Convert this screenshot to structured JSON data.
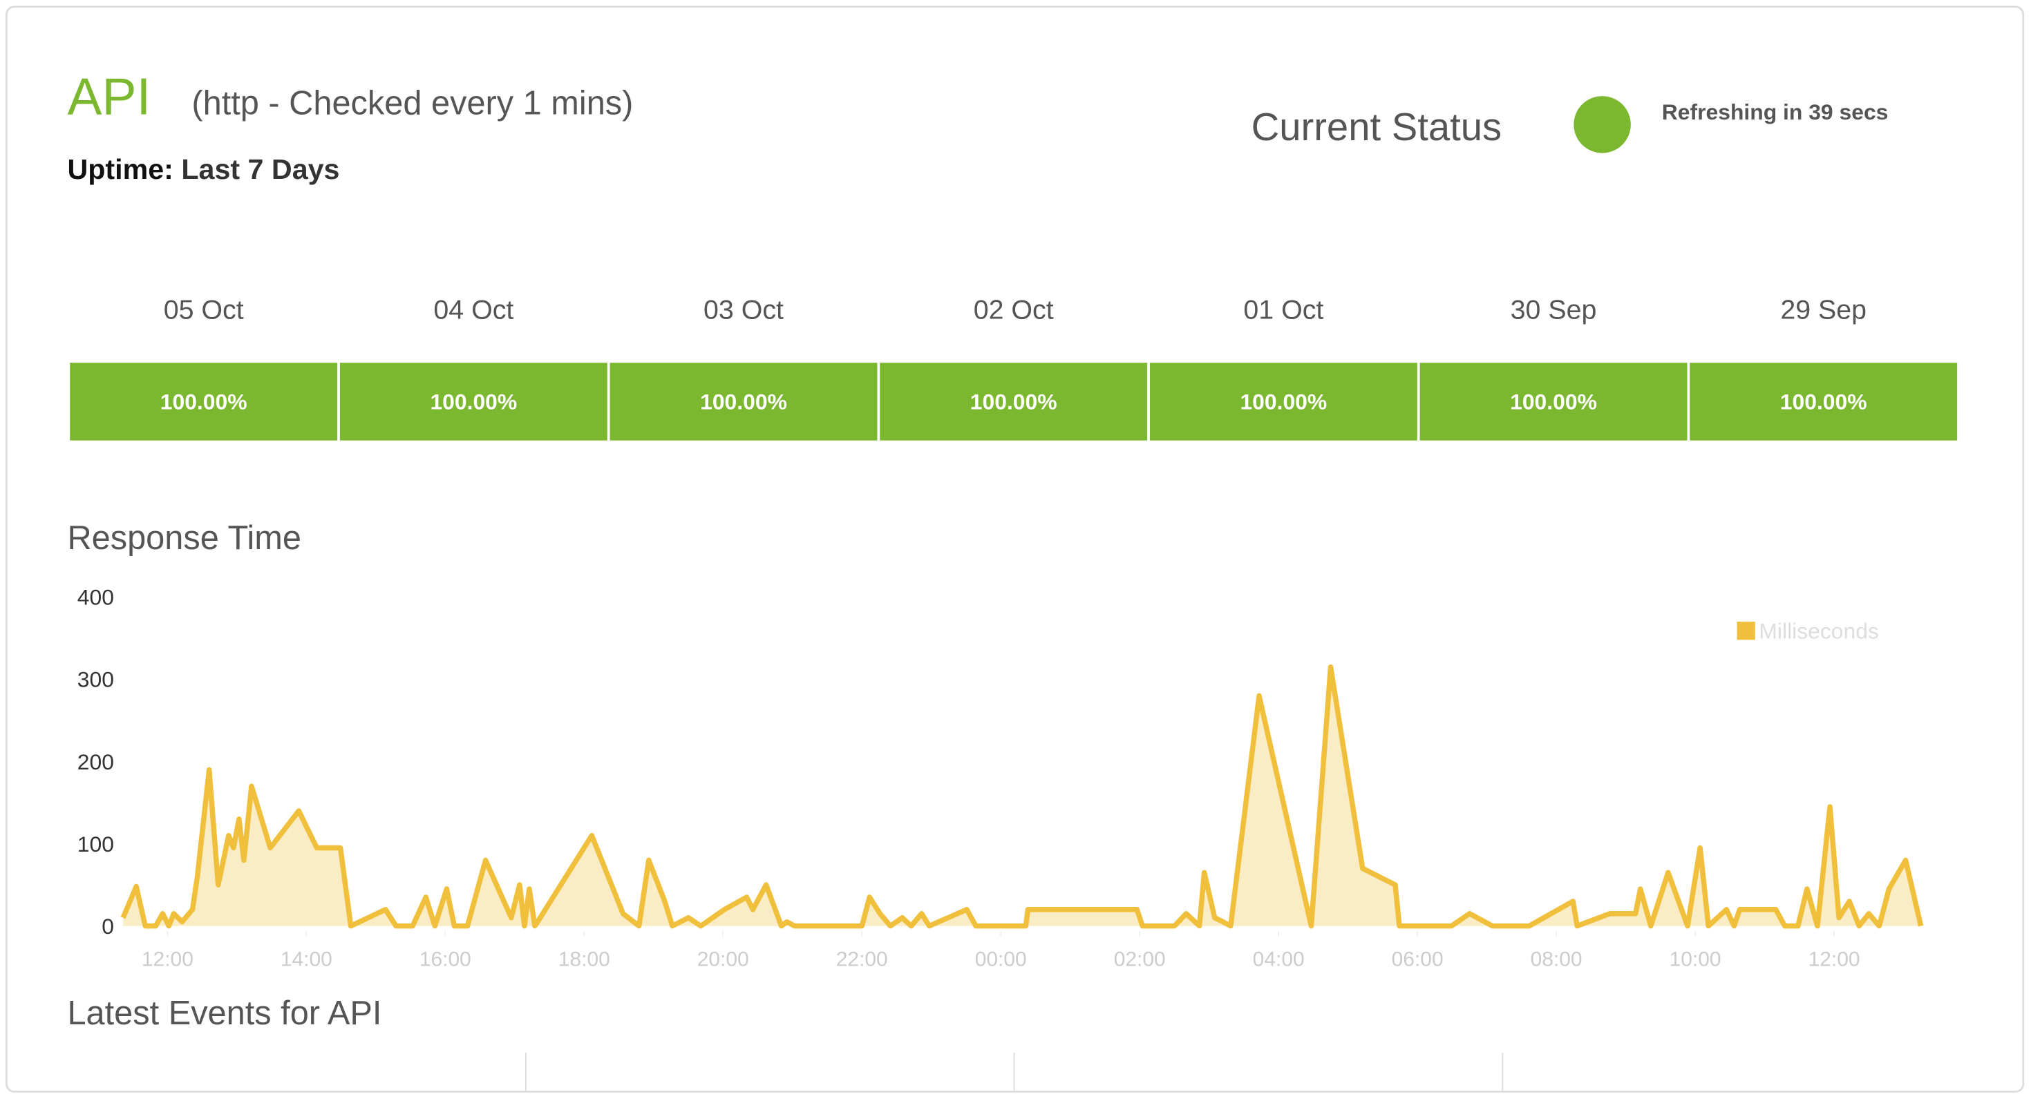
{
  "header": {
    "title": "API",
    "subtitle": "(http - Checked every 1 mins)",
    "uptime_label": "Uptime:",
    "uptime_range": "Last 7 Days"
  },
  "status": {
    "label": "Current Status",
    "refresh": "Refreshing in 39 secs",
    "color": "#7cb82f"
  },
  "uptime": {
    "dates": [
      "05 Oct",
      "04 Oct",
      "03 Oct",
      "02 Oct",
      "01 Oct",
      "30 Sep",
      "29 Sep"
    ],
    "values": [
      "100.00%",
      "100.00%",
      "100.00%",
      "100.00%",
      "100.00%",
      "100.00%",
      "100.00%"
    ],
    "color": "#7cb82f"
  },
  "chart_data": {
    "type": "line",
    "title": "Response Time",
    "x": [
      11.36,
      11.55,
      11.68,
      11.83,
      11.93,
      12.02,
      12.09,
      12.21,
      12.36,
      12.43,
      12.6,
      12.73,
      12.88,
      12.95,
      13.03,
      13.1,
      13.21,
      13.48,
      13.89,
      14.15,
      14.49,
      14.64,
      15.14,
      15.29,
      15.53,
      15.72,
      15.85,
      16.02,
      16.13,
      16.32,
      16.58,
      16.95,
      17.07,
      17.14,
      17.21,
      17.29,
      17.33,
      18.11,
      18.56,
      18.79,
      18.93,
      19.16,
      19.27,
      19.5,
      19.68,
      20.02,
      20.34,
      20.43,
      20.62,
      20.84,
      20.92,
      21.03,
      22.0,
      22.11,
      22.26,
      22.41,
      22.58,
      22.71,
      22.86,
      22.97,
      23.51,
      23.64,
      24.36,
      24.39,
      25.96,
      26.04,
      26.5,
      26.67,
      26.86,
      26.93,
      27.08,
      27.2,
      27.31,
      27.72,
      28.47,
      28.75,
      29.21,
      29.68,
      29.74,
      30.49,
      30.75,
      31.08,
      31.61,
      32.24,
      32.3,
      32.77,
      33.14,
      33.21,
      33.36,
      33.61,
      33.89,
      34.07,
      34.19,
      34.45,
      34.56,
      34.64,
      35.16,
      35.29,
      35.48,
      35.61,
      35.76,
      35.94,
      36.07,
      36.22,
      36.36,
      36.5,
      36.65,
      36.79,
      37.03,
      37.25
    ],
    "series": [
      {
        "name": "Milliseconds",
        "color": "#f0c03c",
        "values": [
          10,
          48,
          0,
          0,
          15,
          0,
          15,
          5,
          20,
          60,
          190,
          50,
          110,
          95,
          130,
          80,
          170,
          95,
          140,
          95,
          95,
          0,
          20,
          0,
          0,
          35,
          0,
          45,
          0,
          0,
          80,
          10,
          50,
          0,
          45,
          0,
          5,
          110,
          15,
          0,
          80,
          30,
          0,
          10,
          0,
          20,
          35,
          20,
          50,
          0,
          5,
          0,
          0,
          35,
          15,
          0,
          10,
          0,
          15,
          0,
          20,
          0,
          0,
          20,
          20,
          0,
          0,
          15,
          0,
          65,
          10,
          5,
          0,
          280,
          0,
          315,
          70,
          50,
          0,
          0,
          15,
          0,
          0,
          30,
          0,
          15,
          15,
          45,
          0,
          65,
          0,
          95,
          0,
          20,
          0,
          20,
          20,
          0,
          0,
          45,
          0,
          145,
          10,
          30,
          0,
          15,
          0,
          45,
          80,
          0
        ]
      }
    ],
    "xlim": [
      11.36,
      37.25
    ],
    "xticks": [
      {
        "value": 12,
        "label": "12:00"
      },
      {
        "value": 14,
        "label": "14:00"
      },
      {
        "value": 16,
        "label": "16:00"
      },
      {
        "value": 18,
        "label": "18:00"
      },
      {
        "value": 20,
        "label": "20:00"
      },
      {
        "value": 22,
        "label": "22:00"
      },
      {
        "value": 24,
        "label": "00:00"
      },
      {
        "value": 26,
        "label": "02:00"
      },
      {
        "value": 28,
        "label": "04:00"
      },
      {
        "value": 30,
        "label": "06:00"
      },
      {
        "value": 32,
        "label": "08:00"
      },
      {
        "value": 34,
        "label": "10:00"
      },
      {
        "value": 36,
        "label": "12:00"
      }
    ],
    "ylim": [
      0,
      400
    ],
    "yticks": [
      0,
      100,
      200,
      300,
      400
    ],
    "grid": false,
    "legend": "top-right"
  },
  "events": {
    "title": "Latest Events for API"
  }
}
